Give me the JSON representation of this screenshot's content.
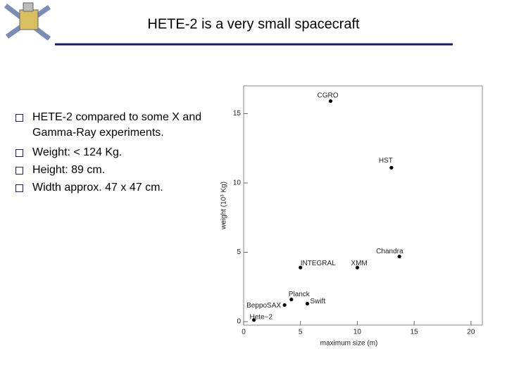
{
  "title": "HETE-2 is a very small spacecraft",
  "bullets": [
    "HETE-2 compared to some X and Gamma-Ray experiments.",
    "Weight:  < 124 Kg.",
    "Height: 89 cm.",
    "Width  approx. 47 x 47 cm."
  ],
  "chart_data": {
    "type": "scatter",
    "xlabel": "maximum size (m)",
    "ylabel": "weight (10³ Kg)",
    "point_labels": [
      "CGRO",
      "HST",
      "Chandra",
      "XMM",
      "INTEGRAL",
      "Planck",
      "Swift",
      "BeppoSAX",
      "Hete−2"
    ],
    "x": [
      7.65,
      13.0,
      13.7,
      10.0,
      5.0,
      4.2,
      5.6,
      3.6,
      0.9
    ],
    "values": [
      15.9,
      11.1,
      4.7,
      3.9,
      3.9,
      1.6,
      1.3,
      1.2,
      0.12
    ],
    "color": "#000000",
    "xlim": [
      0,
      21
    ],
    "ylim": [
      -0.25,
      17
    ],
    "xticks": [
      0,
      5,
      10,
      15,
      20
    ],
    "yticks": [
      0,
      5,
      10,
      15
    ]
  }
}
